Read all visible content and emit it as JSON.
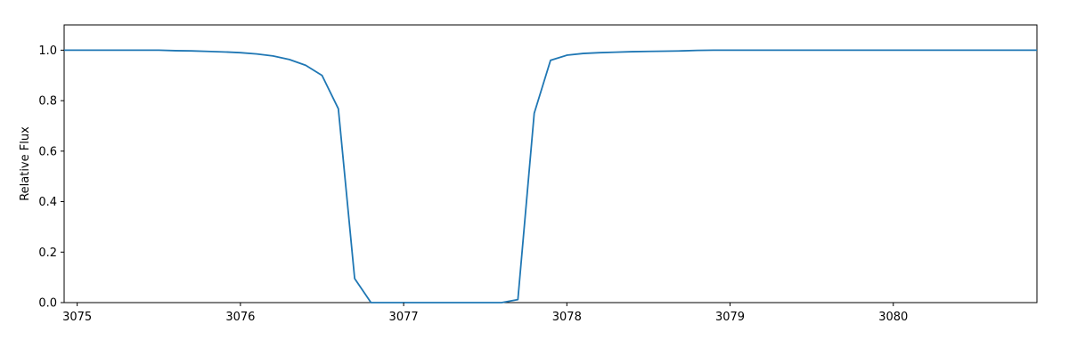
{
  "chart_data": {
    "type": "line",
    "title": "",
    "xlabel": "",
    "ylabel": "Relative Flux",
    "xlim": [
      3074.92,
      3080.88
    ],
    "ylim": [
      0.0,
      1.1
    ],
    "xticks": [
      3075,
      3076,
      3077,
      3078,
      3079,
      3080
    ],
    "yticks": [
      0.0,
      0.2,
      0.4,
      0.6,
      0.8,
      1.0
    ],
    "xtick_labels": [
      "3075",
      "3076",
      "3077",
      "3078",
      "3079",
      "3080"
    ],
    "ytick_labels": [
      "0.0",
      "0.2",
      "0.4",
      "0.6",
      "0.8",
      "1.0"
    ],
    "grid": false,
    "line_color": "#1f77b4",
    "series": [
      {
        "x": [
          3074.92,
          3075.0,
          3075.5,
          3075.6,
          3075.7,
          3075.8,
          3075.9,
          3076.0,
          3076.1,
          3076.2,
          3076.3,
          3076.4,
          3076.5,
          3076.6,
          3076.7,
          3076.8,
          3076.9,
          3077.0,
          3077.1,
          3077.2,
          3077.3,
          3077.4,
          3077.5,
          3077.6,
          3077.7,
          3077.8,
          3077.9,
          3078.0,
          3078.1,
          3078.2,
          3078.3,
          3078.4,
          3078.5,
          3078.6,
          3078.7,
          3078.8,
          3078.9,
          3079.0,
          3079.2,
          3079.5,
          3080.0,
          3080.5,
          3080.88
        ],
        "y": [
          1.0,
          1.0,
          1.0,
          0.998,
          0.997,
          0.995,
          0.993,
          0.99,
          0.985,
          0.977,
          0.963,
          0.94,
          0.9,
          0.768,
          0.095,
          0.0,
          0.0,
          0.0,
          0.0,
          0.0,
          0.0,
          0.0,
          0.0,
          0.0,
          0.012,
          0.75,
          0.96,
          0.98,
          0.987,
          0.99,
          0.992,
          0.994,
          0.995,
          0.996,
          0.997,
          0.999,
          1.0,
          1.0,
          1.0,
          1.0,
          1.0,
          1.0,
          1.0
        ]
      }
    ]
  }
}
